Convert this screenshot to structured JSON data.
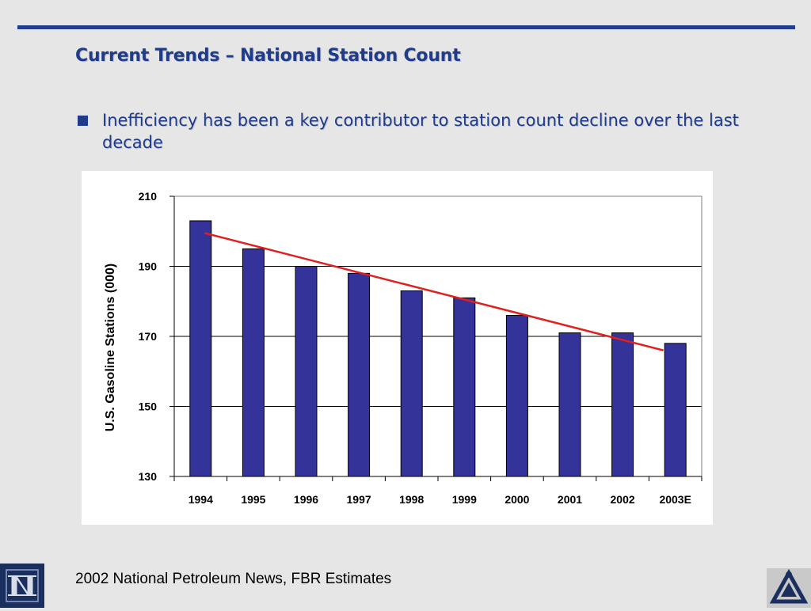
{
  "slide": {
    "title": "Current Trends – National Station Count",
    "bullet": "Inefficiency has been a key contributor to station count decline over the last decade",
    "source": "2002 National Petroleum News, FBR Estimates"
  },
  "colors": {
    "accent": "#1f3b8c",
    "bar_fill": "#333399",
    "trend_line": "#e02020",
    "gridline": "#000000"
  },
  "chart_data": {
    "type": "bar",
    "categories": [
      "1994",
      "1995",
      "1996",
      "1997",
      "1998",
      "1999",
      "2000",
      "2001",
      "2002",
      "2003E"
    ],
    "values": [
      203,
      195,
      190,
      188,
      183,
      181,
      176,
      171,
      171,
      168
    ],
    "ylabel": "U.S. Gasoline Stations (000)",
    "xlabel": "",
    "ylim": [
      130,
      210
    ],
    "yticks": [
      130,
      150,
      170,
      190,
      210
    ],
    "grid": true,
    "trendline": {
      "start": 199.5,
      "end": 166
    }
  }
}
